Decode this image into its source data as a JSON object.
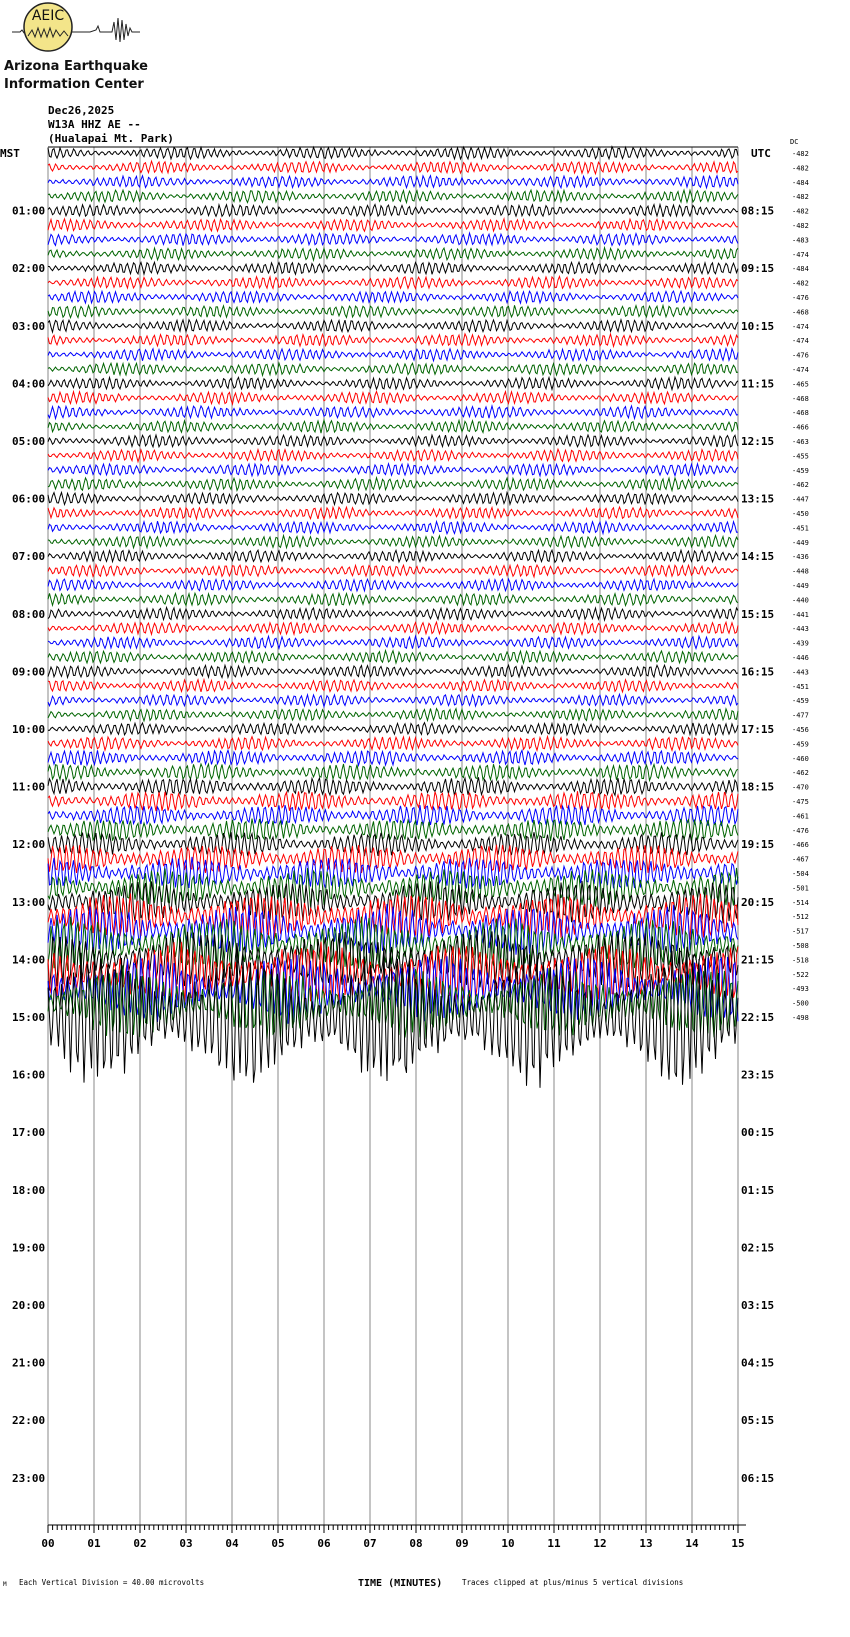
{
  "logo": {
    "initials": "AEIC",
    "line1": "Arizona Earthquake",
    "line2": "Information Center",
    "circle_color": "#f3e58a"
  },
  "header": {
    "date": "Dec26,2025",
    "station": "W13A HHZ AE --",
    "location": "(Hualapai Mt. Park)"
  },
  "chart_data": {
    "type": "line",
    "subtype": "helicorder",
    "left_axis_title": "MST",
    "right_axis_title": "UTC",
    "dc_title": "DC",
    "left_labels": [
      "01:00",
      "02:00",
      "03:00",
      "04:00",
      "05:00",
      "06:00",
      "07:00",
      "08:00",
      "09:00",
      "10:00",
      "11:00",
      "12:00",
      "13:00",
      "14:00",
      "15:00",
      "16:00",
      "17:00",
      "18:00",
      "19:00",
      "20:00",
      "21:00",
      "22:00",
      "23:00"
    ],
    "right_labels": [
      "08:15",
      "09:15",
      "10:15",
      "11:15",
      "12:15",
      "13:15",
      "14:15",
      "15:15",
      "16:15",
      "17:15",
      "18:15",
      "19:15",
      "20:15",
      "21:15",
      "22:15",
      "23:15",
      "00:15",
      "01:15",
      "02:15",
      "03:15",
      "04:15",
      "05:15",
      "06:15"
    ],
    "dc_offsets": [
      -482,
      -482,
      -484,
      -482,
      -482,
      -482,
      -483,
      -474,
      -484,
      -482,
      -476,
      -468,
      -474,
      -474,
      -476,
      -474,
      -465,
      -468,
      -468,
      -466,
      -463,
      -455,
      -459,
      -462,
      -447,
      -450,
      -451,
      -449,
      -436,
      -448,
      -449,
      -440,
      -441,
      -443,
      -439,
      -446,
      -443,
      -451,
      -459,
      -477,
      -456,
      -459,
      -460,
      -462,
      -470,
      -475,
      -461,
      -476,
      -466,
      -467,
      -504,
      -501,
      -514,
      -512,
      -517,
      -508,
      -518,
      -522,
      -493,
      -500,
      -498
    ],
    "trace_colors": [
      "#000000",
      "#ff0000",
      "#0000ff",
      "#006400"
    ],
    "x_ticks": [
      "00",
      "01",
      "02",
      "03",
      "04",
      "05",
      "06",
      "07",
      "08",
      "09",
      "10",
      "11",
      "12",
      "13",
      "14",
      "15"
    ],
    "xlabel": "TIME (MINUTES)",
    "xlim": [
      0,
      15
    ],
    "scale_note": "Each Vertical Division =   40.00 microvolts",
    "clip_note": "Traces clipped at plus/minus 5 vertical divisions",
    "corner_mark": "M"
  }
}
